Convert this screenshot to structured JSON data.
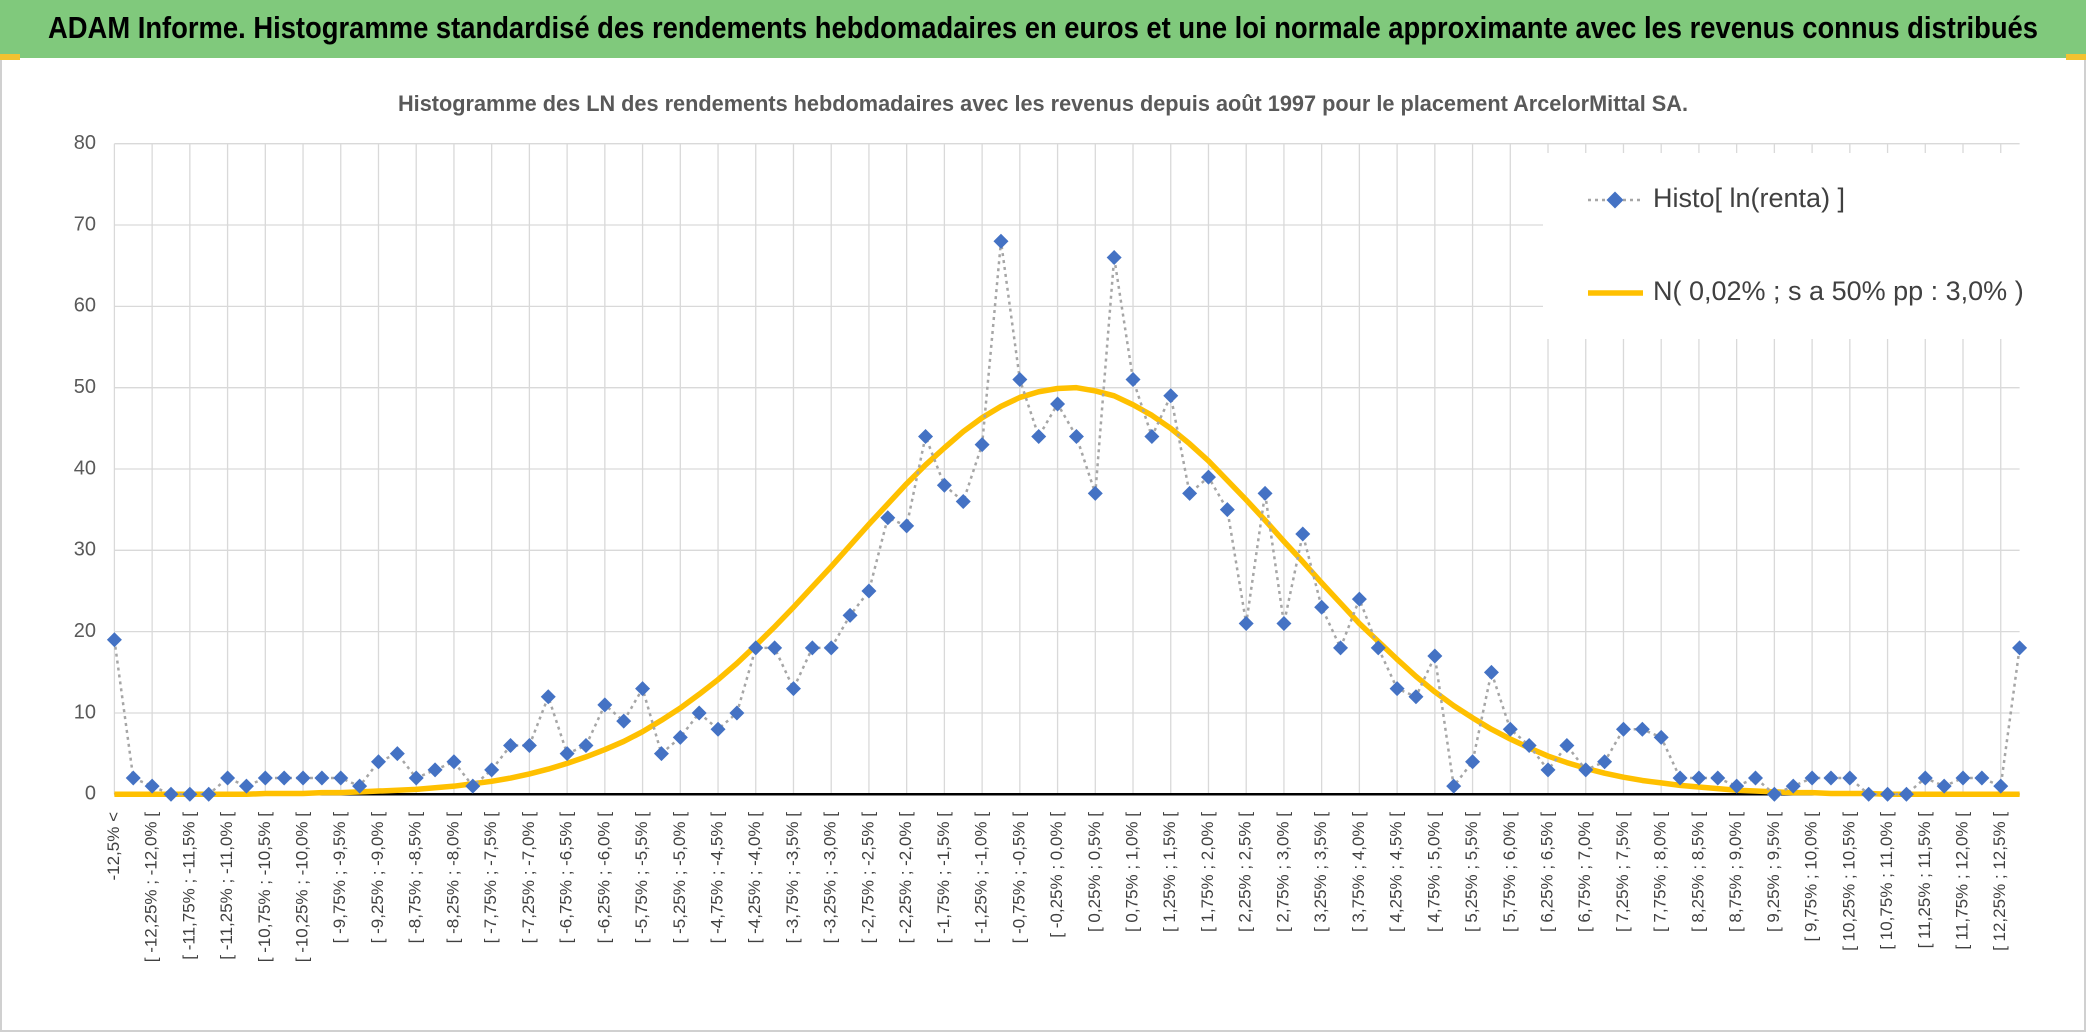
{
  "header": {
    "title": "ADAM Informe. Histogramme standardisé des rendements hebdomadaires en euros et une loi normale approximante avec les revenus connus distribués"
  },
  "chart_data": {
    "type": "line",
    "title": "Histogramme des LN des rendements hebdomadaires avec les revenus depuis août 1997 pour le placement ArcelorMittal SA.",
    "categories": [
      "-12,5% <",
      null,
      "[ -12,25% ; -12,0% [",
      null,
      "[ -11,75% ; -11,5% [",
      null,
      "[ -11,25% ; -11,0% [",
      null,
      "[ -10,75% ; -10,5% [",
      null,
      "[ -10,25% ; -10,0% [",
      null,
      "[ -9,75% ; -9,5% [",
      null,
      "[ -9,25% ; -9,0% [",
      null,
      "[ -8,75% ; -8,5% [",
      null,
      "[ -8,25% ; -8,0% [",
      null,
      "[ -7,75% ; -7,5% [",
      null,
      "[ -7,25% ; -7,0% [",
      null,
      "[ -6,75% ; -6,5% [",
      null,
      "[ -6,25% ; -6,0% [",
      null,
      "[ -5,75% ; -5,5% [",
      null,
      "[ -5,25% ; -5,0% [",
      null,
      "[ -4,75% ; -4,5% [",
      null,
      "[ -4,25% ; -4,0% [",
      null,
      "[ -3,75% ; -3,5% [",
      null,
      "[ -3,25% ; -3,0% [",
      null,
      "[ -2,75% ; -2,5% [",
      null,
      "[ -2,25% ; -2,0% [",
      null,
      "[ -1,75% ; -1,5% [",
      null,
      "[ -1,25% ; -1,0% [",
      null,
      "[ -0,75% ; -0,5% [",
      null,
      "[ -0,25% ; 0,0% [",
      null,
      "[ 0,25% ; 0,5% [",
      null,
      "[ 0,75% ; 1,0% [",
      null,
      "[ 1,25% ; 1,5% [",
      null,
      "[ 1,75% ; 2,0% [",
      null,
      "[ 2,25% ; 2,5% [",
      null,
      "[ 2,75% ; 3,0% [",
      null,
      "[ 3,25% ; 3,5% [",
      null,
      "[ 3,75% ; 4,0% [",
      null,
      "[ 4,25% ; 4,5% [",
      null,
      "[ 4,75% ; 5,0% [",
      null,
      "[ 5,25% ; 5,5% [",
      null,
      "[ 5,75% ; 6,0% [",
      null,
      "[ 6,25% ; 6,5% [",
      null,
      "[ 6,75% ; 7,0% [",
      null,
      "[ 7,25% ; 7,5% [",
      null,
      "[ 7,75% ; 8,0% [",
      null,
      "[ 8,25% ; 8,5% [",
      null,
      "[ 8,75% ; 9,0% [",
      null,
      "[ 9,25% ; 9,5% [",
      null,
      "[ 9,75% ; 10,0% [",
      null,
      "[ 10,25% ; 10,5% [",
      null,
      "[ 10,75% ; 11,0% [",
      null,
      "[ 11,25% ; 11,5% [",
      null,
      "[ 11,75% ; 12,0% [",
      null,
      "[ 12,25% ; 12,5% [",
      null
    ],
    "series": [
      {
        "name": "Histo[ ln(renta) ]",
        "color": "#4472c4",
        "line_color": "#a6a6a6",
        "line_style": "dotted",
        "marker": "diamond",
        "values": [
          19,
          2,
          1,
          0,
          0,
          0,
          2,
          1,
          2,
          2,
          2,
          2,
          2,
          1,
          4,
          5,
          2,
          3,
          4,
          1,
          3,
          6,
          6,
          12,
          5,
          6,
          11,
          9,
          13,
          5,
          7,
          10,
          8,
          10,
          18,
          18,
          13,
          18,
          18,
          22,
          25,
          34,
          33,
          44,
          38,
          36,
          43,
          68,
          51,
          44,
          48,
          44,
          37,
          66,
          51,
          44,
          49,
          37,
          39,
          35,
          21,
          37,
          21,
          32,
          23,
          18,
          24,
          18,
          13,
          12,
          17,
          1,
          4,
          15,
          8,
          6,
          3,
          6,
          3,
          4,
          8,
          8,
          7,
          2,
          2,
          2,
          1,
          2,
          0,
          1,
          2,
          2,
          2,
          0,
          0,
          0,
          2,
          1,
          2,
          2,
          1,
          18
        ]
      },
      {
        "name": "N( 0,02% ; s a 50% pp : 3,0% )",
        "color": "#ffc000",
        "line_style": "solid",
        "marker": "none",
        "values": [
          0,
          0,
          0,
          0,
          0,
          0,
          0,
          0,
          0.1,
          0.1,
          0.1,
          0.2,
          0.2,
          0.3,
          0.4,
          0.5,
          0.6,
          0.8,
          1.0,
          1.3,
          1.6,
          2.0,
          2.5,
          3.1,
          3.8,
          4.6,
          5.5,
          6.5,
          7.7,
          9.1,
          10.6,
          12.3,
          14.1,
          16.1,
          18.3,
          20.6,
          23.0,
          25.5,
          28.0,
          30.6,
          33.2,
          35.7,
          38.2,
          40.5,
          42.6,
          44.6,
          46.3,
          47.7,
          48.8,
          49.5,
          49.9,
          50.0,
          49.6,
          49.0,
          47.9,
          46.6,
          45.0,
          43.1,
          41.0,
          38.6,
          36.2,
          33.7,
          31.1,
          28.6,
          26.0,
          23.5,
          21.0,
          18.8,
          16.6,
          14.5,
          12.6,
          10.9,
          9.4,
          8.0,
          6.8,
          5.7,
          4.7,
          3.9,
          3.2,
          2.6,
          2.1,
          1.7,
          1.4,
          1.1,
          0.9,
          0.7,
          0.5,
          0.4,
          0.3,
          0.2,
          0.2,
          0.1,
          0.1,
          0.1,
          0,
          0,
          0,
          0,
          0,
          0,
          0,
          0
        ]
      }
    ],
    "ylim": [
      0,
      80
    ],
    "yticks": [
      0,
      10,
      20,
      30,
      40,
      50,
      60,
      70,
      80
    ],
    "grid": true,
    "legend": "upper right"
  }
}
